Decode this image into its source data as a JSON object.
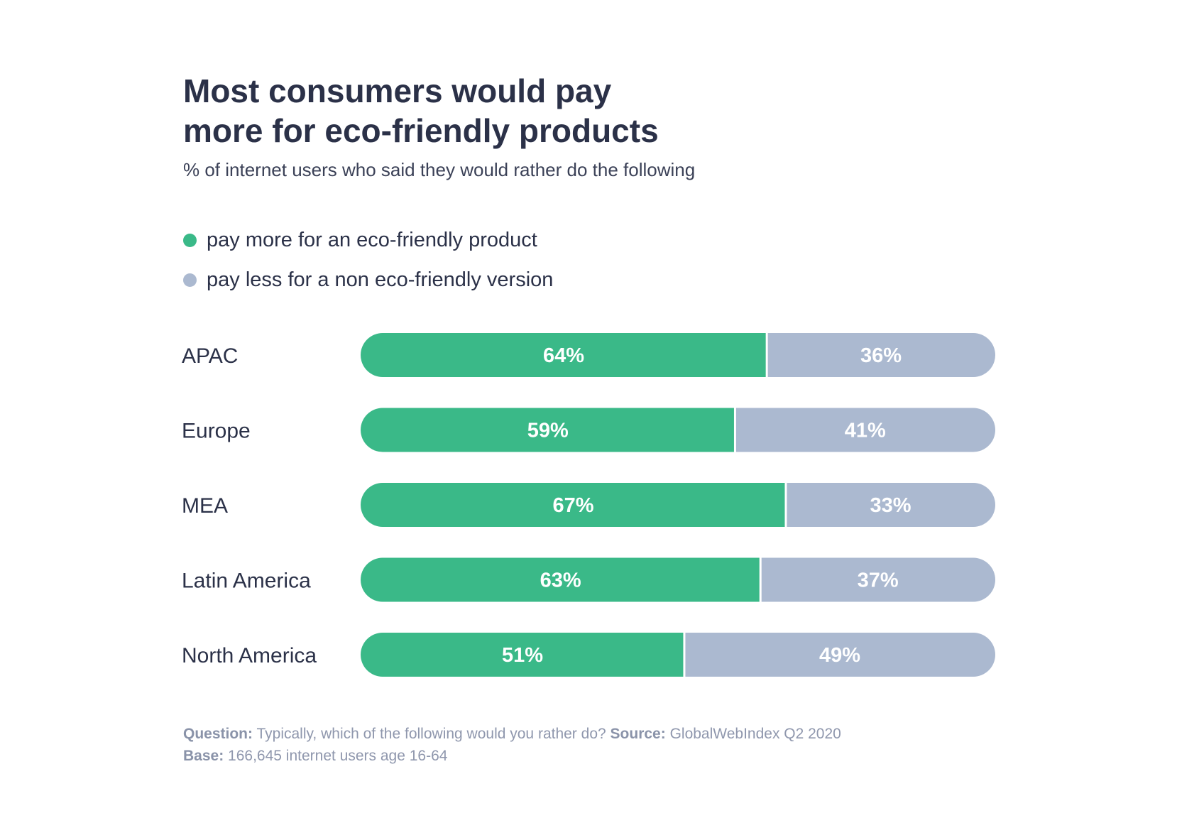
{
  "title": {
    "line1": "Most consumers would pay",
    "line2": "more for eco-friendly products"
  },
  "subtitle": "% of internet users who said they would rather do the following",
  "colors": {
    "more": "#3ab988",
    "less": "#abb9d0",
    "text": "#2b3148"
  },
  "legend": [
    {
      "label": "pay more for an eco-friendly product",
      "color": "#3ab988"
    },
    {
      "label": "pay less for a non eco-friendly version",
      "color": "#abb9d0"
    }
  ],
  "chart_data": {
    "type": "bar",
    "orientation": "horizontal",
    "stacked": true,
    "categories": [
      "APAC",
      "Europe",
      "MEA",
      "Latin America",
      "North America"
    ],
    "series": [
      {
        "name": "pay more for an eco-friendly product",
        "values": [
          64,
          59,
          67,
          63,
          51
        ],
        "labels": [
          "64%",
          "59%",
          "67%",
          "63%",
          "51%"
        ]
      },
      {
        "name": "pay less for a non eco-friendly version",
        "values": [
          36,
          41,
          33,
          37,
          49
        ],
        "labels": [
          "36%",
          "41%",
          "33%",
          "37%",
          "49%"
        ]
      }
    ],
    "xlim": [
      0,
      100
    ],
    "grid": false,
    "legend_position": "top-left"
  },
  "footnote": {
    "question_label": "Question:",
    "question_text": "Typically, which of the following would you rather do?",
    "source_label": "Source:",
    "source_text": "GlobalWebIndex Q2 2020",
    "base_label": "Base:",
    "base_text": "166,645 internet users age 16-64"
  }
}
